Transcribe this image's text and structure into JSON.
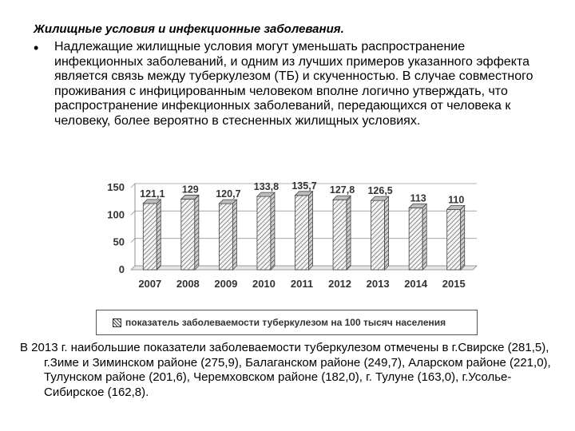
{
  "heading": "Жилищные условия и инфекционные заболевания.",
  "bullet": {
    "marker": "•",
    "text": "Надлежащие жилищные условия могут уменьшать распространение инфекционных заболеваний, и одним из лучших примеров указанного эффекта является связь между туберкулезом (ТБ) и скученностью. В случае совместного проживания с инфицированным человеком вполне логично утверждать, что распространение инфекционных заболеваний, передающихся от человека к человеку, более вероятно в стесненных жилищных условиях."
  },
  "chart_data": {
    "type": "bar",
    "categories": [
      "2007",
      "2008",
      "2009",
      "2010",
      "2011",
      "2012",
      "2013",
      "2014",
      "2015"
    ],
    "series": [
      {
        "name": "показатель заболеваемости туберкулезом на 100 тысяч населения",
        "values": [
          121.1,
          129,
          120.7,
          133.8,
          135.7,
          127.8,
          126.5,
          113,
          110
        ],
        "labels": [
          "121,1",
          "129",
          "120,7",
          "133,8",
          "135,7",
          "127,8",
          "126,5",
          "113",
          "110"
        ]
      }
    ],
    "yticks": [
      "0",
      "50",
      "100",
      "150"
    ],
    "ylim": [
      0,
      150
    ],
    "grid": true,
    "legend": "bottom",
    "bar_style": "3d-hatched"
  },
  "footer": "В 2013 г. наибольшие показатели заболеваемости туберкулезом отмечены в г.Свирске (281,5), г.Зиме и Зиминском районе (275,9), Балаганском районе (249,7), Аларском районе (221,0), Тулунском районе (201,6), Черемховском районе (182,0), г. Тулуне (163,0), г.Усолье-Сибирское (162,8)."
}
